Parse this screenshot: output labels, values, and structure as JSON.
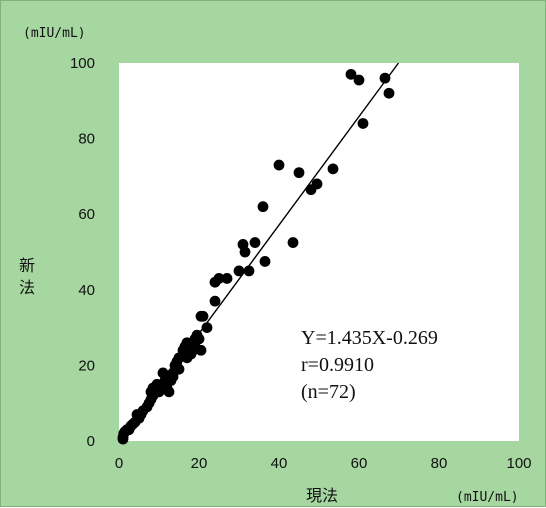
{
  "chart_data": {
    "type": "scatter",
    "title": "",
    "xlabel": "現法",
    "ylabel": "新法",
    "x_unit": "(mIU/mL)",
    "y_unit": "(mIU/mL)",
    "xlim": [
      0,
      100
    ],
    "ylim": [
      0,
      100
    ],
    "x_ticks": [
      "0",
      "20",
      "40",
      "60",
      "80",
      "100"
    ],
    "y_ticks": [
      "0",
      "20",
      "40",
      "60",
      "80",
      "100"
    ],
    "grid": false,
    "regression": {
      "slope": 1.435,
      "intercept": -0.269
    },
    "annotations": [
      "Y=1.435X-0.269",
      "r=0.9910",
      "(n=72)"
    ],
    "colors": {
      "background": "#a6d7a1",
      "plot_area": "#ffffff",
      "points": "#000000"
    },
    "series": [
      {
        "points": [
          [
            1,
            0.5
          ],
          [
            1,
            1
          ],
          [
            1.2,
            2
          ],
          [
            1.5,
            2.5
          ],
          [
            2,
            3
          ],
          [
            2.5,
            3
          ],
          [
            3,
            4
          ],
          [
            3.5,
            4.5
          ],
          [
            4,
            5
          ],
          [
            5,
            6
          ],
          [
            5.5,
            7
          ],
          [
            6,
            8
          ],
          [
            7,
            9
          ],
          [
            7.5,
            10
          ],
          [
            8,
            11
          ],
          [
            8.5,
            12
          ],
          [
            9,
            13
          ],
          [
            10,
            13
          ],
          [
            10.5,
            14
          ],
          [
            11,
            15
          ],
          [
            11.5,
            16
          ],
          [
            12,
            14
          ],
          [
            12,
            17
          ],
          [
            13,
            16
          ],
          [
            13.5,
            18
          ],
          [
            14,
            20
          ],
          [
            14.5,
            21
          ],
          [
            15,
            22
          ],
          [
            16,
            24
          ],
          [
            16.5,
            25
          ],
          [
            17,
            26
          ],
          [
            18,
            23
          ],
          [
            18.5,
            24
          ],
          [
            19,
            25
          ],
          [
            19.5,
            28
          ],
          [
            20,
            27
          ],
          [
            20.5,
            24
          ],
          [
            21,
            33
          ],
          [
            24,
            37
          ],
          [
            25,
            43
          ],
          [
            27,
            43
          ],
          [
            30,
            45
          ],
          [
            31,
            52
          ],
          [
            31.5,
            50
          ],
          [
            32.5,
            45
          ],
          [
            36.5,
            47.5
          ],
          [
            4.5,
            7
          ],
          [
            8,
            13
          ],
          [
            9.5,
            15
          ],
          [
            11,
            18
          ],
          [
            12.5,
            13
          ],
          [
            13.5,
            17
          ],
          [
            15,
            19
          ],
          [
            17,
            22
          ],
          [
            19,
            27
          ],
          [
            22,
            30
          ],
          [
            34,
            52.5
          ],
          [
            36,
            62
          ],
          [
            40,
            73
          ],
          [
            45,
            71
          ],
          [
            48,
            66.5
          ],
          [
            49.5,
            68
          ],
          [
            53.5,
            72
          ],
          [
            58,
            97
          ],
          [
            60,
            95.5
          ],
          [
            61,
            84
          ],
          [
            66.5,
            96
          ],
          [
            67.5,
            92
          ],
          [
            20.5,
            33
          ],
          [
            24,
            42
          ],
          [
            43.5,
            52.5
          ],
          [
            8.5,
            14
          ]
        ]
      }
    ]
  }
}
